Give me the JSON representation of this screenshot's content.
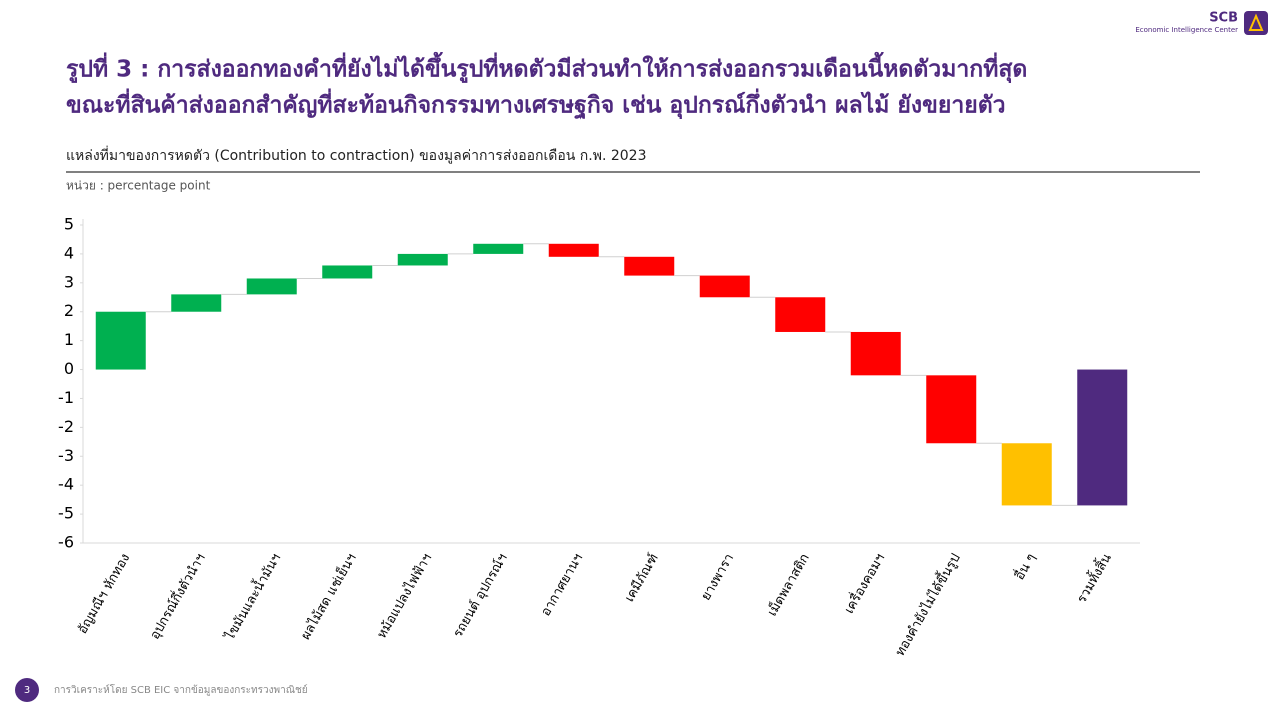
{
  "header": {
    "logo_name": "SCB",
    "logo_subtitle": "Economic Intelligence Center",
    "title_lines": [
      "รูปที่ 3 : การส่งออกทองคำที่ยังไม่ได้ขึ้นรูปที่หดตัวมีส่วนทำให้การส่งออกรวมเดือนนี้หดตัวมากที่สุด",
      "ขณะที่สินค้าส่งออกสำคัญที่สะท้อนกิจกรรมทางเศรษฐกิจ เช่น อุปกรณ์กึ่งตัวนำ ผลไม้ ยังขยายตัว"
    ]
  },
  "chart_data": {
    "type": "waterfall",
    "title": "แหล่งที่มาของการหดตัว (Contribution to contraction) ของมูลค่าการส่งออกเดือน ก.พ. 2023",
    "subtitle": "หน่วย : percentage point",
    "categories": [
      "อัญมณีฯ หักทอง",
      "อุปกรณ์กึ่งตัวนำฯ",
      "ไขมันและน้ำมันฯ",
      "ผลไม้สด แช่เย็นฯ",
      "หม้อแปลงไฟฟ้าฯ",
      "รถยนต์ อุปกรณ์ฯ",
      "อากาศยานฯ",
      "เคมีภัณฑ์",
      "ยางพารา",
      "เม็ดพลาสติก",
      "เครื่องคอมฯ",
      "ทองคำยังไม่ได้ขึ้นรูป",
      "อื่น ๆ"
    ],
    "values": [
      2.0,
      0.6,
      0.55,
      0.45,
      0.4,
      0.35,
      -0.45,
      -0.65,
      -0.75,
      -1.2,
      -1.5,
      -2.35,
      -2.15
    ],
    "colors": [
      "#00b050",
      "#00b050",
      "#00b050",
      "#00b050",
      "#00b050",
      "#00b050",
      "#ff0000",
      "#ff0000",
      "#ff0000",
      "#ff0000",
      "#ff0000",
      "#ff0000",
      "#ffc000"
    ],
    "total": {
      "label": "รวมทั้งสิ้น",
      "value": -4.7,
      "color": "#4f2a7f"
    },
    "ylim": [
      -6,
      5
    ],
    "yticks": [
      -6,
      -5,
      -4,
      -3,
      -2,
      -1,
      0,
      1,
      2,
      3,
      4,
      5
    ]
  },
  "footer": {
    "page": "3",
    "source": "การวิเคราะห์โดย SCB EIC จากข้อมูลของกระทรวงพาณิชย์"
  }
}
